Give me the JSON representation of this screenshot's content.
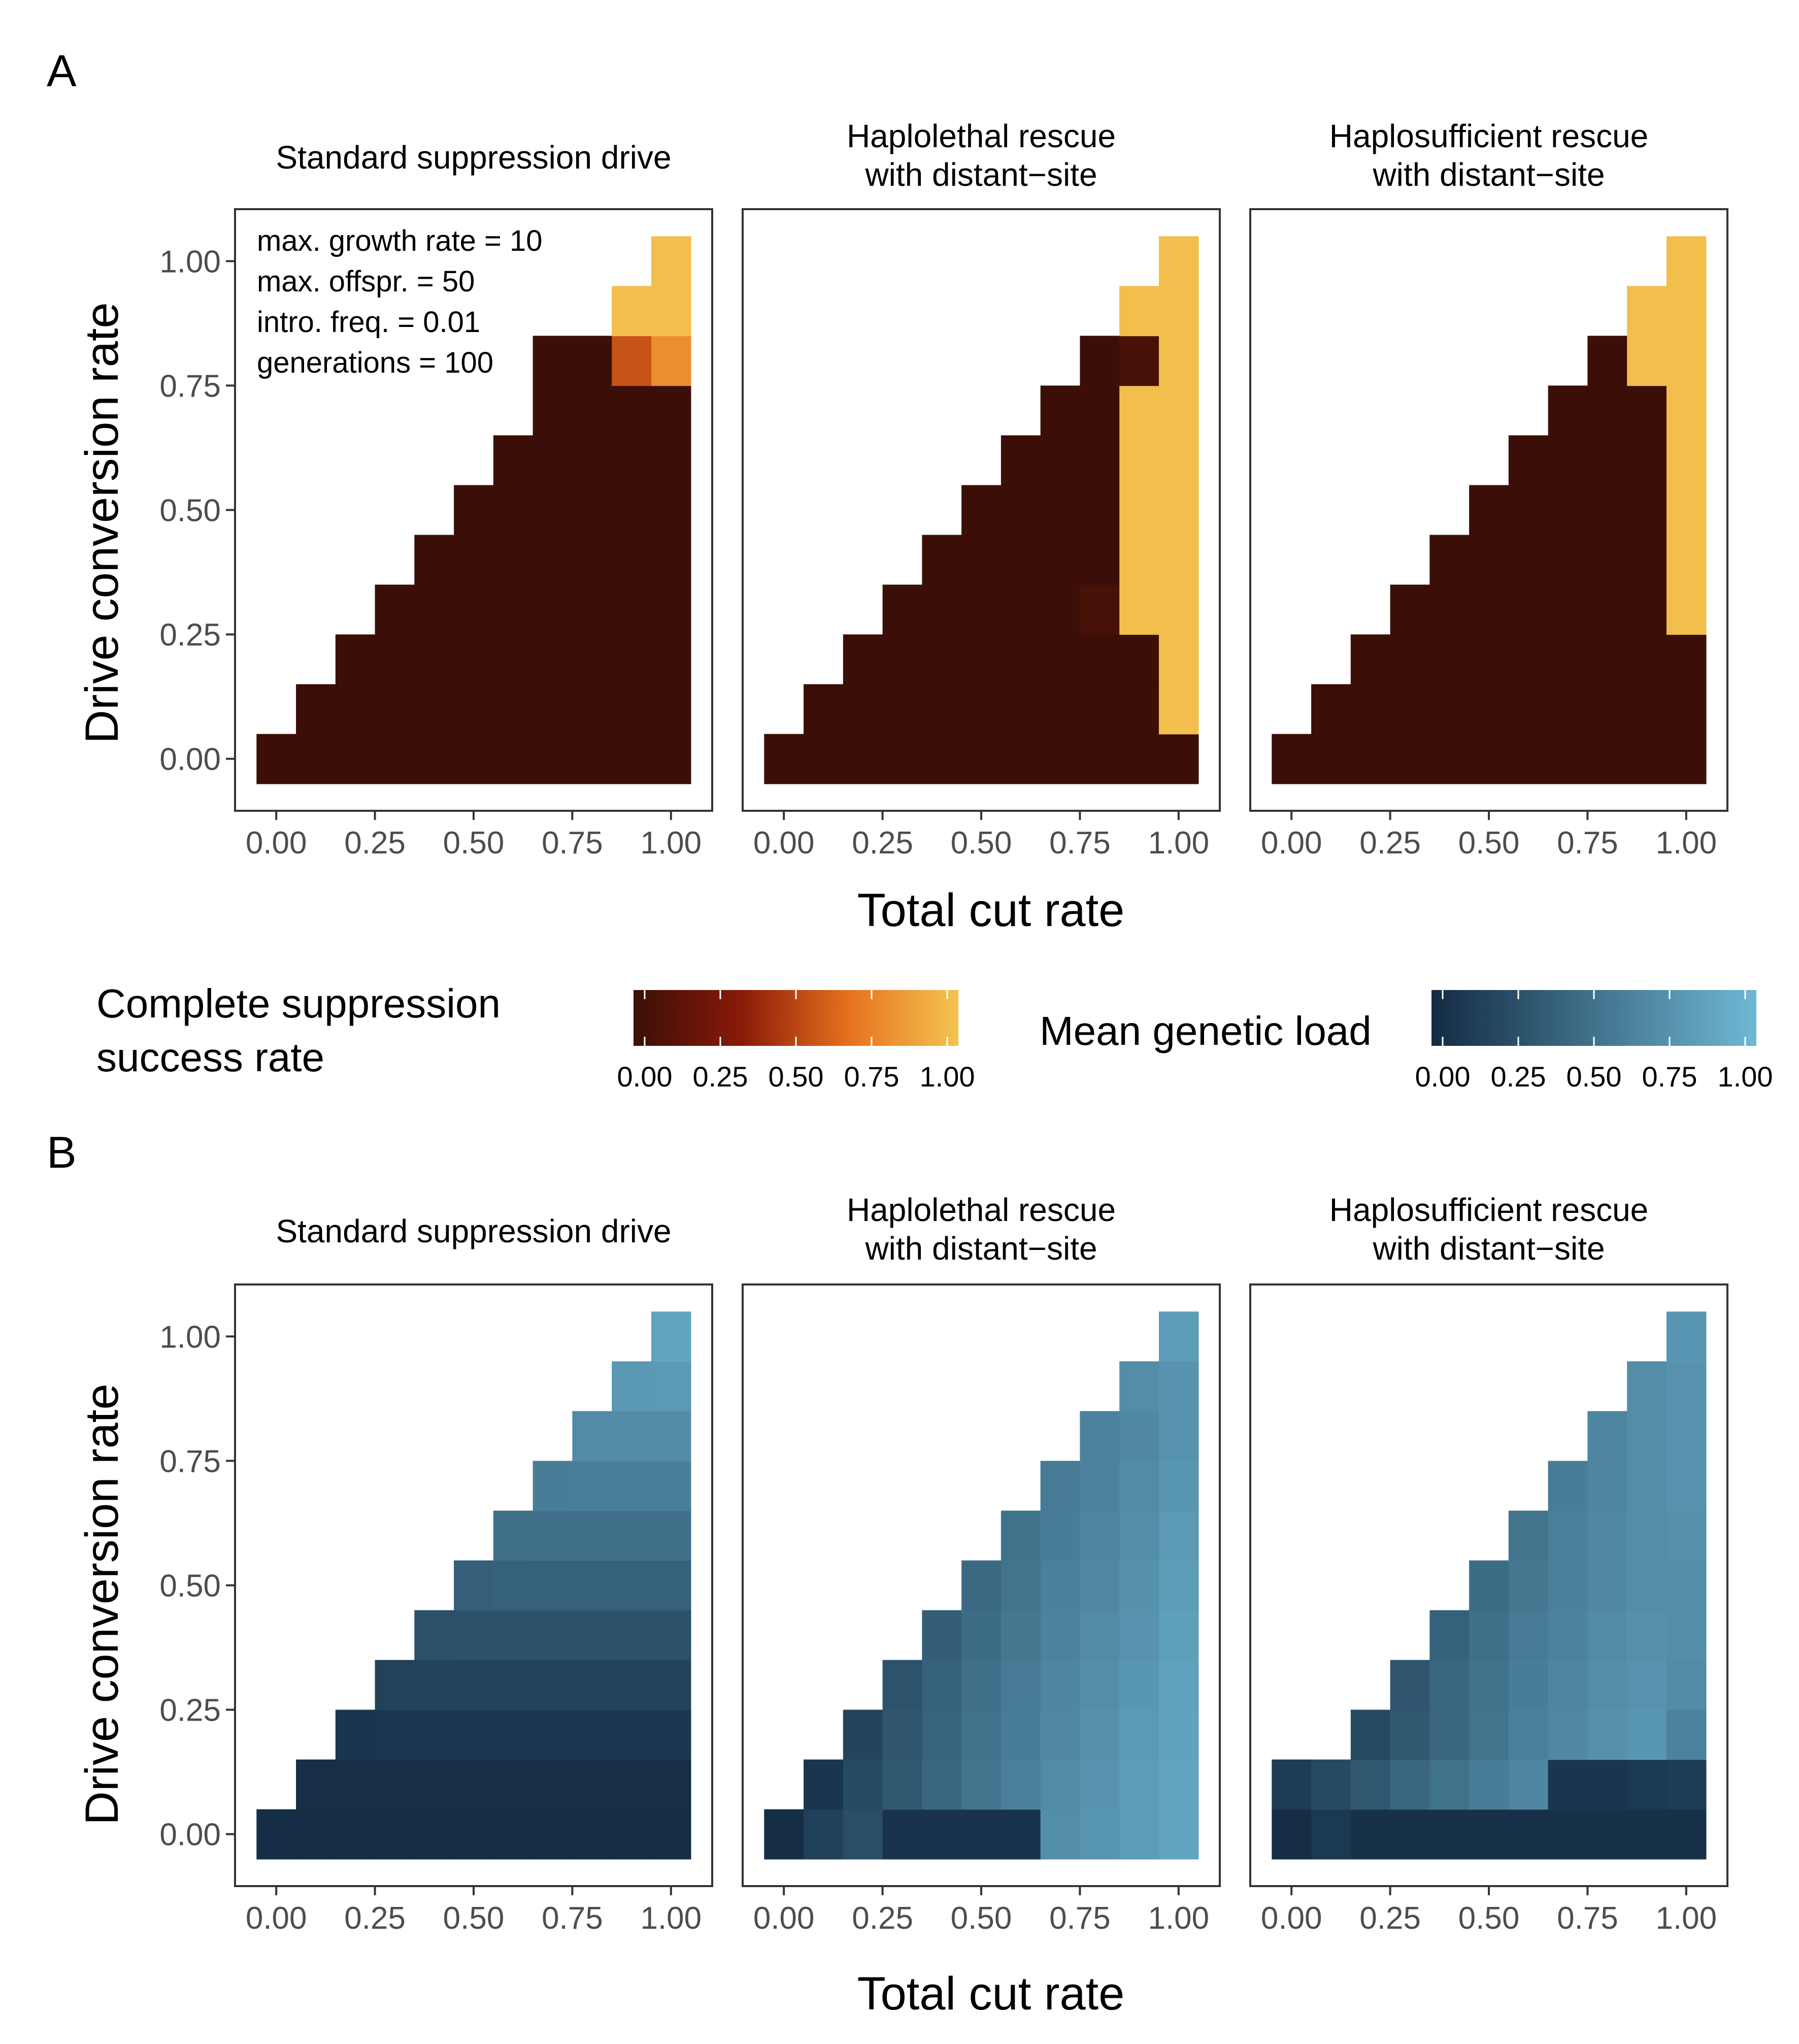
{
  "panels": [
    {
      "id": "A",
      "letter": "A",
      "fill_scale": "success"
    },
    {
      "id": "B",
      "letter": "B",
      "fill_scale": "load"
    }
  ],
  "facets": [
    {
      "title_lines": [
        "Standard suppression drive"
      ]
    },
    {
      "title_lines": [
        "Haplolethal rescue",
        "with distant−site"
      ]
    },
    {
      "title_lines": [
        "Haplosufficient rescue",
        "with distant−site"
      ]
    }
  ],
  "annotation_lines": [
    "max. growth rate = 10",
    "max. offspr. = 50",
    "intro. freq. = 0.01",
    "generations = 100"
  ],
  "legends": [
    {
      "id": "success",
      "title_lines": [
        "Complete suppression",
        "success rate"
      ],
      "stops": [
        "#3b0f07",
        "#8a1a08",
        "#e8721f",
        "#f3c34f"
      ],
      "ticks": [
        "0.00",
        "0.25",
        "0.50",
        "0.75",
        "1.00"
      ]
    },
    {
      "id": "load",
      "title_lines": [
        "Mean genetic load"
      ],
      "stops": [
        "#132b43",
        "#56b1f7"
      ],
      "ticks": [
        "0.00",
        "0.25",
        "0.50",
        "0.75",
        "1.00"
      ]
    }
  ],
  "colors": {
    "success_stops": [
      "#3b0f07",
      "#8a1a08",
      "#e8721f",
      "#f3c34f"
    ],
    "load_stops": [
      "#132b43",
      "#6fb8d4"
    ]
  },
  "chart_data": {
    "type": "heatmap",
    "xlabel": "Total cut rate",
    "ylabel": "Drive conversion rate",
    "x_ticks": [
      "0.00",
      "0.25",
      "0.50",
      "0.75",
      "1.00"
    ],
    "y_ticks": [
      "0.00",
      "0.25",
      "0.50",
      "0.75",
      "1.00"
    ],
    "x": [
      0.0,
      0.1,
      0.2,
      0.3,
      0.4,
      0.5,
      0.6,
      0.7,
      0.8,
      0.9,
      1.0
    ],
    "y": [
      0.0,
      0.1,
      0.2,
      0.3,
      0.4,
      0.5,
      0.6,
      0.7,
      0.8,
      0.9,
      1.0
    ],
    "cells_note_omitted": false,
    "panel_A_success_rate": [
      [
        [
          0,
          0,
          0,
          0,
          0,
          0,
          0,
          0,
          0,
          0,
          0
        ],
        [
          0,
          0,
          0,
          0,
          0,
          0,
          0,
          0,
          0,
          0
        ],
        [
          0,
          0,
          0,
          0,
          0,
          0,
          0,
          0,
          0
        ],
        [
          0,
          0,
          0,
          0,
          0,
          0,
          0,
          0
        ],
        [
          0,
          0,
          0,
          0,
          0,
          0,
          0
        ],
        [
          0,
          0,
          0,
          0,
          0,
          0
        ],
        [
          0,
          0,
          0,
          0,
          0
        ],
        [
          0,
          0,
          0,
          0
        ],
        [
          0,
          0,
          0.55,
          0.78
        ],
        [
          0.98,
          0.98
        ],
        [
          0.98
        ]
      ],
      [
        [
          0,
          0,
          0,
          0,
          0,
          0,
          0,
          0,
          0,
          0,
          0
        ],
        [
          0,
          0,
          0,
          0,
          0,
          0,
          0,
          0,
          0,
          0.98
        ],
        [
          0,
          0,
          0,
          0,
          0,
          0,
          0,
          0,
          0.98
        ],
        [
          0,
          0,
          0,
          0,
          0,
          0.05,
          0.98,
          0.98
        ],
        [
          0,
          0,
          0,
          0,
          0,
          0.98,
          0.98
        ],
        [
          0,
          0,
          0,
          0,
          0.98,
          0.98
        ],
        [
          0,
          0,
          0,
          0.98,
          0.98
        ],
        [
          0,
          0,
          0.98,
          0.98
        ],
        [
          0,
          0.05,
          0.98
        ],
        [
          0.98,
          0.98
        ],
        [
          0.98
        ]
      ],
      [
        [
          0,
          0,
          0,
          0,
          0,
          0,
          0,
          0,
          0,
          0,
          0
        ],
        [
          0,
          0,
          0,
          0,
          0,
          0,
          0,
          0,
          0,
          0
        ],
        [
          0,
          0,
          0,
          0,
          0,
          0,
          0,
          0,
          0
        ],
        [
          0,
          0,
          0,
          0,
          0,
          0,
          0,
          0.98
        ],
        [
          0,
          0,
          0,
          0,
          0,
          0,
          0.98
        ],
        [
          0,
          0,
          0,
          0,
          0,
          0.98
        ],
        [
          0,
          0,
          0,
          0,
          0.98
        ],
        [
          0,
          0,
          0,
          0.98
        ],
        [
          0,
          0.98,
          0.98
        ],
        [
          0.98,
          0.98
        ],
        [
          0.98
        ]
      ]
    ],
    "panel_B_genetic_load": [
      [
        [
          0.02,
          0.02,
          0.02,
          0.02,
          0.02,
          0.02,
          0.02,
          0.02,
          0.02,
          0.02,
          0.02
        ],
        [
          0.03,
          0.03,
          0.03,
          0.03,
          0.03,
          0.03,
          0.03,
          0.03,
          0.03,
          0.03
        ],
        [
          0.08,
          0.09,
          0.09,
          0.09,
          0.09,
          0.09,
          0.09,
          0.09,
          0.09
        ],
        [
          0.16,
          0.17,
          0.17,
          0.17,
          0.17,
          0.17,
          0.17,
          0.17
        ],
        [
          0.26,
          0.27,
          0.27,
          0.27,
          0.27,
          0.27,
          0.27
        ],
        [
          0.37,
          0.38,
          0.38,
          0.38,
          0.38,
          0.38
        ],
        [
          0.48,
          0.49,
          0.49,
          0.49,
          0.49
        ],
        [
          0.58,
          0.59,
          0.59,
          0.59
        ],
        [
          0.68,
          0.69,
          0.69
        ],
        [
          0.77,
          0.78
        ],
        [
          0.86
        ]
      ],
      [
        [
          0.02,
          0.15,
          0.25,
          0.06,
          0.06,
          0.06,
          0.06,
          0.7,
          0.75,
          0.8,
          0.86
        ],
        [
          0.08,
          0.22,
          0.32,
          0.42,
          0.52,
          0.6,
          0.68,
          0.74,
          0.8,
          0.86
        ],
        [
          0.18,
          0.3,
          0.4,
          0.5,
          0.58,
          0.66,
          0.72,
          0.78,
          0.85
        ],
        [
          0.28,
          0.38,
          0.48,
          0.56,
          0.64,
          0.7,
          0.76,
          0.84
        ],
        [
          0.36,
          0.46,
          0.54,
          0.62,
          0.68,
          0.74,
          0.82
        ],
        [
          0.44,
          0.52,
          0.6,
          0.66,
          0.72,
          0.8
        ],
        [
          0.5,
          0.58,
          0.64,
          0.7,
          0.78
        ],
        [
          0.56,
          0.62,
          0.68,
          0.76
        ],
        [
          0.62,
          0.66,
          0.74
        ],
        [
          0.7,
          0.74
        ],
        [
          0.8
        ]
      ],
      [
        [
          0.02,
          0.1,
          0.04,
          0.04,
          0.04,
          0.04,
          0.04,
          0.04,
          0.04,
          0.04,
          0.04
        ],
        [
          0.12,
          0.22,
          0.32,
          0.42,
          0.5,
          0.58,
          0.64,
          0.08,
          0.08,
          0.1,
          0.12
        ],
        [
          0.22,
          0.32,
          0.42,
          0.52,
          0.6,
          0.66,
          0.72,
          0.76,
          0.62
        ],
        [
          0.3,
          0.42,
          0.5,
          0.58,
          0.64,
          0.7,
          0.74,
          0.68
        ],
        [
          0.38,
          0.48,
          0.56,
          0.62,
          0.68,
          0.72,
          0.7
        ],
        [
          0.46,
          0.54,
          0.6,
          0.66,
          0.7,
          0.7
        ],
        [
          0.52,
          0.6,
          0.66,
          0.7,
          0.72
        ],
        [
          0.58,
          0.64,
          0.7,
          0.74
        ],
        [
          0.64,
          0.7,
          0.74
        ],
        [
          0.7,
          0.74
        ],
        [
          0.76
        ]
      ]
    ]
  }
}
